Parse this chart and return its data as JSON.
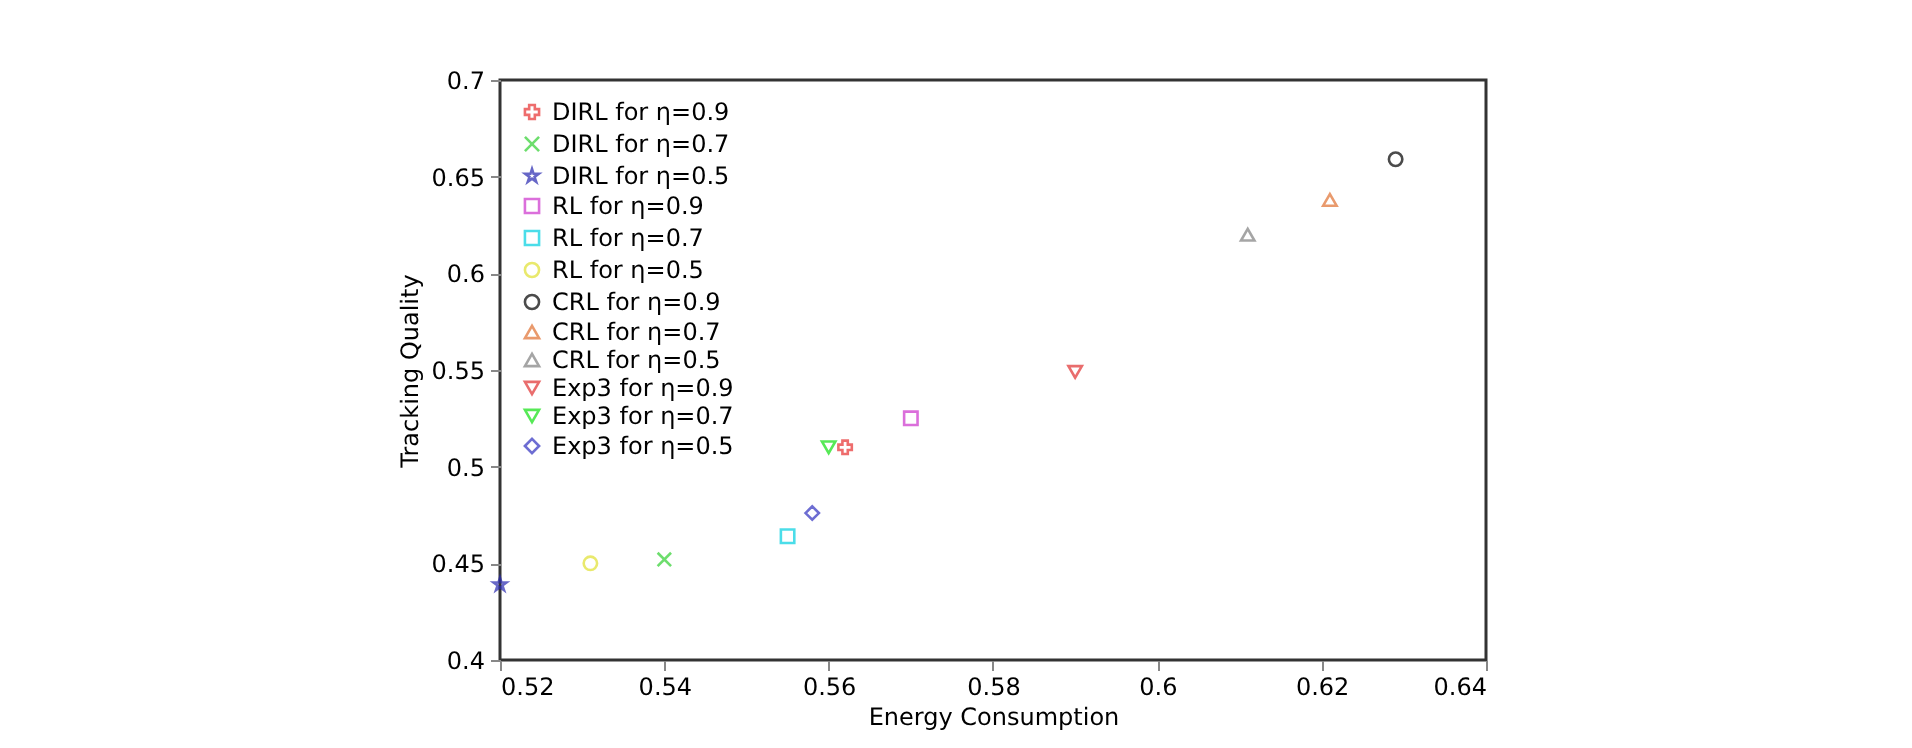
{
  "chart_data": {
    "type": "scatter",
    "xlabel": "Energy Consumption",
    "ylabel": "Tracking Quality",
    "xlim": [
      0.52,
      0.64
    ],
    "xticks": [
      0.52,
      0.54,
      0.56,
      0.58,
      0.6,
      0.62,
      0.64
    ],
    "ylim": [
      0.4,
      0.7
    ],
    "yticks": [
      0.4,
      0.45,
      0.5,
      0.55,
      0.6,
      0.65,
      0.7
    ],
    "grid": false,
    "legend": "top left",
    "series": [
      {
        "name": "DIRL for η=0.9",
        "color": "#e83030",
        "marker": "cross",
        "x": [
          0.562
        ],
        "values": [
          0.51
        ]
      },
      {
        "name": "DIRL for η=0.7",
        "color": "#30d030",
        "marker": "x",
        "x": [
          0.54
        ],
        "values": [
          0.452
        ]
      },
      {
        "name": "DIRL for η=0.5",
        "color": "#2828b0",
        "marker": "star",
        "x": [
          0.52
        ],
        "values": [
          0.439
        ]
      },
      {
        "name": "RL for η=0.9",
        "color": "#cc33cc",
        "marker": "square",
        "x": [
          0.57
        ],
        "values": [
          0.525
        ]
      },
      {
        "name": "RL for η=0.7",
        "color": "#00d0e0",
        "marker": "square",
        "x": [
          0.555
        ],
        "values": [
          0.464
        ]
      },
      {
        "name": "RL for η=0.5",
        "color": "#e0e030",
        "marker": "circle",
        "x": [
          0.531
        ],
        "values": [
          0.45
        ]
      },
      {
        "name": "CRL for η=0.9",
        "color": "#000000",
        "marker": "circle",
        "x": [
          0.629
        ],
        "values": [
          0.659
        ]
      },
      {
        "name": "CRL for η=0.7",
        "color": "#e07030",
        "marker": "triangle",
        "x": [
          0.621
        ],
        "values": [
          0.638
        ]
      },
      {
        "name": "CRL for η=0.5",
        "color": "#808080",
        "marker": "triangle",
        "x": [
          0.611
        ],
        "values": [
          0.62
        ]
      },
      {
        "name": "Exp3 for η=0.9",
        "color": "#e03030",
        "marker": "triangle-down",
        "x": [
          0.59
        ],
        "values": [
          0.549
        ]
      },
      {
        "name": "Exp3 for η=0.7",
        "color": "#10e010",
        "marker": "triangle-down",
        "x": [
          0.56
        ],
        "values": [
          0.51
        ]
      },
      {
        "name": "Exp3 for η=0.5",
        "color": "#3030c0",
        "marker": "diamond",
        "x": [
          0.558
        ],
        "values": [
          0.476
        ]
      }
    ]
  }
}
